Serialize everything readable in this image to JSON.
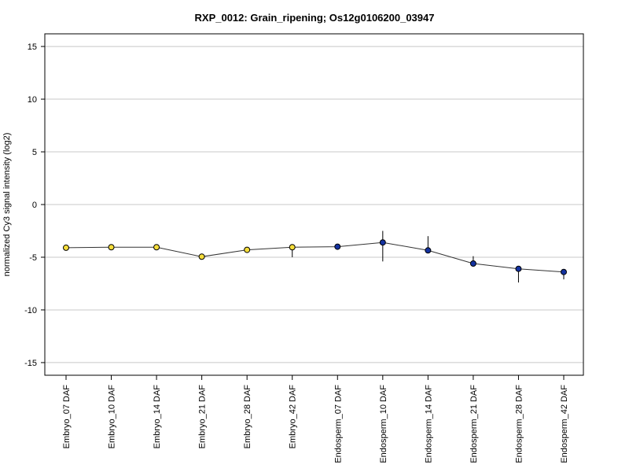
{
  "chart_data": {
    "type": "line",
    "title": "RXP_0012: Grain_ripening; Os12g0106200_03947",
    "xlabel": "",
    "ylabel": "normalized Cy3 signal intensity (log2)",
    "ylim": [
      -16.2,
      16.2
    ],
    "yticks": [
      -15,
      -10,
      -5,
      0,
      5,
      10,
      15
    ],
    "grid": true,
    "categories": [
      "Embryo_07 DAF",
      "Embryo_10 DAF",
      "Embryo_14 DAF",
      "Embryo_21 DAF",
      "Embryo_28 DAF",
      "Embryo_42 DAF",
      "Endosperm_07 DAF",
      "Endosperm_10 DAF",
      "Endosperm_14 DAF",
      "Endosperm_21 DAF",
      "Endosperm_28 DAF",
      "Endosperm_42 DAF"
    ],
    "values": [
      -4.1,
      -4.05,
      -4.05,
      -4.95,
      -4.3,
      -4.05,
      -4.0,
      -3.6,
      -4.35,
      -5.6,
      -6.1,
      -6.4
    ],
    "error_low": [
      -4.1,
      -4.05,
      -4.05,
      -4.95,
      -4.3,
      -5.0,
      -4.0,
      -5.4,
      -4.4,
      -5.6,
      -7.4,
      -7.1
    ],
    "error_high": [
      -4.1,
      -4.05,
      -4.05,
      -4.95,
      -4.3,
      -3.95,
      -4.0,
      -2.5,
      -3.0,
      -4.9,
      -6.1,
      -6.4
    ],
    "point_colors": [
      "#f5dd3a",
      "#f5dd3a",
      "#f5dd3a",
      "#f5dd3a",
      "#f5dd3a",
      "#f5dd3a",
      "#1432a0",
      "#1432a0",
      "#1432a0",
      "#1432a0",
      "#1432a0",
      "#1432a0"
    ],
    "line_color": "#333333",
    "grid_color": "#c8c8c8"
  }
}
